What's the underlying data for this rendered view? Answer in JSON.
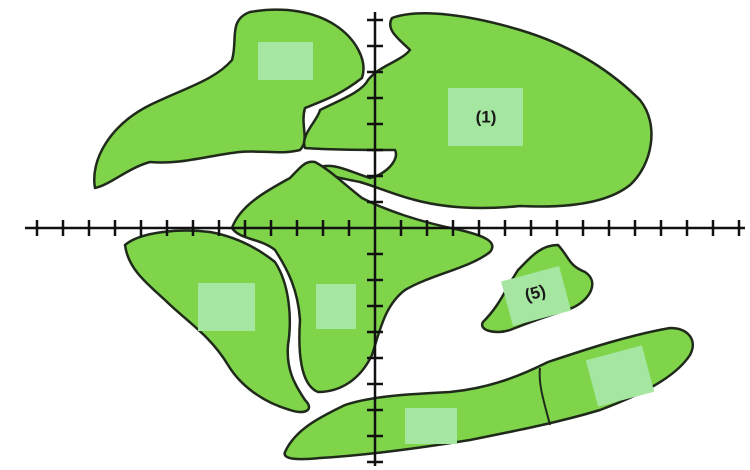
{
  "labels": [
    "(1)",
    "(5)"
  ]
}
